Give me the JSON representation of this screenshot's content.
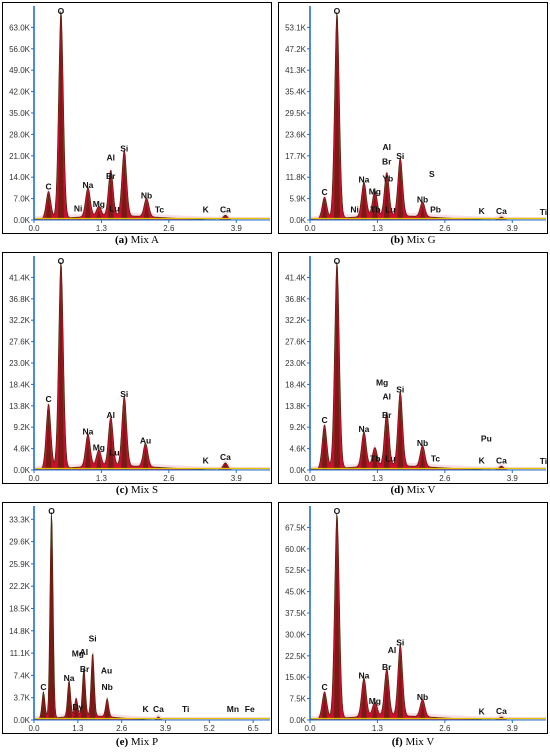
{
  "colors": {
    "frame": "#000000",
    "axis": "#1f6fd1",
    "fill": "#c8102e",
    "glow": "#f3b6c6",
    "dark": "#3a2200",
    "baseline": "#e6c200"
  },
  "panels": [
    {
      "id": "a",
      "caption_letter": "(a)",
      "caption_text": "Mix A",
      "chart_data": {
        "type": "area",
        "title": "",
        "xlabel": "",
        "ylabel": "",
        "xlim": [
          0,
          4.55
        ],
        "ylim": [
          0,
          70000
        ],
        "yticks": [
          "0.0K",
          "7.0K",
          "14.0K",
          "21.0K",
          "28.0K",
          "35.0K",
          "42.0K",
          "49.0K",
          "56.0K",
          "63.0K"
        ],
        "ytick_values": [
          0,
          7000,
          14000,
          21000,
          28000,
          35000,
          42000,
          49000,
          56000,
          63000
        ],
        "xticks": [
          "0.0",
          "1.3",
          "2.6",
          "3.9"
        ],
        "xtick_values": [
          0,
          1.3,
          2.6,
          3.9
        ],
        "peaks": [
          {
            "x": 0.28,
            "y": 9000
          },
          {
            "x": 0.52,
            "y": 68000
          },
          {
            "x": 1.04,
            "y": 9500
          },
          {
            "x": 1.25,
            "y": 3200
          },
          {
            "x": 1.48,
            "y": 15000
          },
          {
            "x": 1.74,
            "y": 21500
          },
          {
            "x": 2.17,
            "y": 6000
          },
          {
            "x": 3.69,
            "y": 1500
          }
        ],
        "labels": [
          {
            "text": "O",
            "x": 0.52,
            "y": 68000
          },
          {
            "text": "C",
            "x": 0.28,
            "y": 9000
          },
          {
            "text": "Na",
            "x": 1.04,
            "y": 9500
          },
          {
            "text": "Ni",
            "x": 0.85,
            "y": 1800
          },
          {
            "text": "Mg",
            "x": 1.25,
            "y": 3200
          },
          {
            "text": "Al",
            "x": 1.48,
            "y": 18500
          },
          {
            "text": "Br",
            "x": 1.48,
            "y": 12500
          },
          {
            "text": "Lu",
            "x": 1.55,
            "y": 1800
          },
          {
            "text": "Si",
            "x": 1.74,
            "y": 21500
          },
          {
            "text": "Nb",
            "x": 2.17,
            "y": 6000
          },
          {
            "text": "Tc",
            "x": 2.42,
            "y": 1500
          },
          {
            "text": "K",
            "x": 3.31,
            "y": 1500
          },
          {
            "text": "Ca",
            "x": 3.69,
            "y": 1500
          }
        ]
      }
    },
    {
      "id": "b",
      "caption_letter": "(b)",
      "caption_text": "Mix G",
      "chart_data": {
        "type": "area",
        "title": "",
        "xlabel": "",
        "ylabel": "",
        "xlim": [
          0,
          4.55
        ],
        "ylim": [
          0,
          59000
        ],
        "yticks": [
          "0.0K",
          "5.9K",
          "11.8K",
          "17.7K",
          "23.6K",
          "29.5K",
          "35.4K",
          "41.3K",
          "47.2K",
          "53.1K"
        ],
        "ytick_values": [
          0,
          5900,
          11800,
          17700,
          23600,
          29500,
          35400,
          41300,
          47200,
          53100
        ],
        "xticks": [
          "0.0",
          "1.3",
          "2.6",
          "3.9"
        ],
        "xtick_values": [
          0,
          1.3,
          2.6,
          3.9
        ],
        "peaks": [
          {
            "x": 0.28,
            "y": 6000
          },
          {
            "x": 0.52,
            "y": 57000
          },
          {
            "x": 1.04,
            "y": 9500
          },
          {
            "x": 1.25,
            "y": 7000
          },
          {
            "x": 1.48,
            "y": 12000
          },
          {
            "x": 1.74,
            "y": 16000
          },
          {
            "x": 2.17,
            "y": 4000
          },
          {
            "x": 3.69,
            "y": 800
          }
        ],
        "labels": [
          {
            "text": "O",
            "x": 0.52,
            "y": 57000
          },
          {
            "text": "C",
            "x": 0.28,
            "y": 6000
          },
          {
            "text": "Na",
            "x": 1.04,
            "y": 9500
          },
          {
            "text": "Ni",
            "x": 0.86,
            "y": 1200
          },
          {
            "text": "Mg",
            "x": 1.25,
            "y": 6200
          },
          {
            "text": "Tb",
            "x": 1.26,
            "y": 1200
          },
          {
            "text": "Al",
            "x": 1.48,
            "y": 18500
          },
          {
            "text": "Br",
            "x": 1.48,
            "y": 14500
          },
          {
            "text": "Yb",
            "x": 1.5,
            "y": 9800
          },
          {
            "text": "Lu",
            "x": 1.55,
            "y": 1200
          },
          {
            "text": "Si",
            "x": 1.74,
            "y": 16000
          },
          {
            "text": "S",
            "x": 2.35,
            "y": 11000
          },
          {
            "text": "Nb",
            "x": 2.17,
            "y": 4000
          },
          {
            "text": "Pb",
            "x": 2.42,
            "y": 1200
          },
          {
            "text": "K",
            "x": 3.31,
            "y": 800
          },
          {
            "text": "Ca",
            "x": 3.69,
            "y": 800
          },
          {
            "text": "Ti",
            "x": 4.5,
            "y": 600
          }
        ]
      }
    },
    {
      "id": "c",
      "caption_letter": "(c)",
      "caption_text": "Mix S",
      "chart_data": {
        "type": "area",
        "title": "",
        "xlabel": "",
        "ylabel": "",
        "xlim": [
          0,
          4.55
        ],
        "ylim": [
          0,
          46000
        ],
        "yticks": [
          "0.0K",
          "4.6K",
          "9.2K",
          "13.8K",
          "18.4K",
          "23.0K",
          "27.6K",
          "32.2K",
          "36.8K",
          "41.4K"
        ],
        "ytick_values": [
          0,
          4600,
          9200,
          13800,
          18400,
          23000,
          27600,
          32200,
          36800,
          41400
        ],
        "xticks": [
          "0.0",
          "1.3",
          "2.6",
          "3.9"
        ],
        "xtick_values": [
          0,
          1.3,
          2.6,
          3.9
        ],
        "peaks": [
          {
            "x": 0.28,
            "y": 14000
          },
          {
            "x": 0.52,
            "y": 44500
          },
          {
            "x": 1.04,
            "y": 7000
          },
          {
            "x": 1.25,
            "y": 3500
          },
          {
            "x": 1.48,
            "y": 10500
          },
          {
            "x": 1.74,
            "y": 15000
          },
          {
            "x": 2.15,
            "y": 5000
          },
          {
            "x": 3.69,
            "y": 1500
          }
        ],
        "labels": [
          {
            "text": "O",
            "x": 0.52,
            "y": 44500
          },
          {
            "text": "C",
            "x": 0.28,
            "y": 14000
          },
          {
            "text": "Na",
            "x": 1.04,
            "y": 7000
          },
          {
            "text": "Mg",
            "x": 1.25,
            "y": 3500
          },
          {
            "text": "Al",
            "x": 1.48,
            "y": 10500
          },
          {
            "text": "Lu",
            "x": 1.55,
            "y": 2500
          },
          {
            "text": "Si",
            "x": 1.74,
            "y": 15000
          },
          {
            "text": "Au",
            "x": 2.15,
            "y": 5000
          },
          {
            "text": "K",
            "x": 3.31,
            "y": 800
          },
          {
            "text": "Ca",
            "x": 3.69,
            "y": 1500
          }
        ]
      }
    },
    {
      "id": "d",
      "caption_letter": "(d)",
      "caption_text": "Mix V",
      "chart_data": {
        "type": "area",
        "title": "",
        "xlabel": "",
        "ylabel": "",
        "xlim": [
          0,
          4.55
        ],
        "ylim": [
          0,
          46000
        ],
        "yticks": [
          "0.0K",
          "4.6K",
          "9.2K",
          "13.8K",
          "18.4K",
          "23.0K",
          "27.6K",
          "32.2K",
          "36.8K",
          "41.4K"
        ],
        "ytick_values": [
          0,
          4600,
          9200,
          13800,
          18400,
          23000,
          27600,
          32200,
          36800,
          41400
        ],
        "xticks": [
          "0.0",
          "1.3",
          "2.6",
          "3.9"
        ],
        "xtick_values": [
          0,
          1.3,
          2.6,
          3.9
        ],
        "peaks": [
          {
            "x": 0.28,
            "y": 9500
          },
          {
            "x": 0.52,
            "y": 44500
          },
          {
            "x": 1.04,
            "y": 7500
          },
          {
            "x": 1.25,
            "y": 4000
          },
          {
            "x": 1.48,
            "y": 11500
          },
          {
            "x": 1.74,
            "y": 16000
          },
          {
            "x": 2.17,
            "y": 4500
          },
          {
            "x": 3.69,
            "y": 800
          }
        ],
        "labels": [
          {
            "text": "O",
            "x": 0.52,
            "y": 44500
          },
          {
            "text": "C",
            "x": 0.28,
            "y": 9500
          },
          {
            "text": "Na",
            "x": 1.04,
            "y": 7500
          },
          {
            "text": "Mg",
            "x": 1.39,
            "y": 17500
          },
          {
            "text": "Al",
            "x": 1.48,
            "y": 14500
          },
          {
            "text": "Br",
            "x": 1.48,
            "y": 10500
          },
          {
            "text": "Tb",
            "x": 1.26,
            "y": 1200
          },
          {
            "text": "Lu",
            "x": 1.55,
            "y": 1200
          },
          {
            "text": "Si",
            "x": 1.74,
            "y": 16000
          },
          {
            "text": "Nb",
            "x": 2.17,
            "y": 4500
          },
          {
            "text": "Tc",
            "x": 2.42,
            "y": 1200
          },
          {
            "text": "Pu",
            "x": 3.4,
            "y": 5500
          },
          {
            "text": "K",
            "x": 3.31,
            "y": 800
          },
          {
            "text": "Ca",
            "x": 3.69,
            "y": 800
          },
          {
            "text": "Ti",
            "x": 4.5,
            "y": 600
          }
        ]
      }
    },
    {
      "id": "e",
      "caption_letter": "(e)",
      "caption_text": "Mix P",
      "chart_data": {
        "type": "area",
        "title": "",
        "xlabel": "",
        "ylabel": "",
        "xlim": [
          0,
          7.0
        ],
        "ylim": [
          0,
          35500
        ],
        "yticks": [
          "0.0K",
          "3.7K",
          "7.4K",
          "11.1K",
          "14.8K",
          "18.5K",
          "22.2K",
          "25.9K",
          "29.6K",
          "33.3K"
        ],
        "ytick_values": [
          0,
          3700,
          7400,
          11100,
          14800,
          18500,
          22200,
          25900,
          29600,
          33300
        ],
        "xticks": [
          "0.0",
          "1.3",
          "2.6",
          "3.9",
          "5.2",
          "6.5"
        ],
        "xtick_values": [
          0,
          1.3,
          2.6,
          3.9,
          5.2,
          6.5
        ],
        "peaks": [
          {
            "x": 0.28,
            "y": 4500
          },
          {
            "x": 0.52,
            "y": 34500
          },
          {
            "x": 1.04,
            "y": 6000
          },
          {
            "x": 1.25,
            "y": 3000
          },
          {
            "x": 1.48,
            "y": 8000
          },
          {
            "x": 1.74,
            "y": 10500
          },
          {
            "x": 2.17,
            "y": 3000
          },
          {
            "x": 3.69,
            "y": 500
          }
        ],
        "labels": [
          {
            "text": "O",
            "x": 0.52,
            "y": 34500
          },
          {
            "text": "C",
            "x": 0.28,
            "y": 4500
          },
          {
            "text": "Na",
            "x": 1.04,
            "y": 6000
          },
          {
            "text": "Dy",
            "x": 1.3,
            "y": 1200
          },
          {
            "text": "Mg",
            "x": 1.3,
            "y": 10000
          },
          {
            "text": "Al",
            "x": 1.48,
            "y": 10300
          },
          {
            "text": "Br",
            "x": 1.5,
            "y": 7500
          },
          {
            "text": "Si",
            "x": 1.74,
            "y": 12500
          },
          {
            "text": "Au",
            "x": 2.15,
            "y": 7200
          },
          {
            "text": "Nb",
            "x": 2.17,
            "y": 4500
          },
          {
            "text": "K",
            "x": 3.31,
            "y": 800
          },
          {
            "text": "Ca",
            "x": 3.69,
            "y": 800
          },
          {
            "text": "Ti",
            "x": 4.5,
            "y": 800
          },
          {
            "text": "Mn",
            "x": 5.9,
            "y": 800
          },
          {
            "text": "Fe",
            "x": 6.4,
            "y": 800
          }
        ]
      }
    },
    {
      "id": "f",
      "caption_letter": "(f)",
      "caption_text": "Mix V",
      "chart_data": {
        "type": "area",
        "title": "",
        "xlabel": "",
        "ylabel": "",
        "xlim": [
          0,
          4.55
        ],
        "ylim": [
          0,
          75000
        ],
        "yticks": [
          "0.0K",
          "7.5K",
          "15.0K",
          "22.5K",
          "30.0K",
          "37.5K",
          "45.0K",
          "52.5K",
          "60.0K",
          "67.5K"
        ],
        "ytick_values": [
          0,
          7500,
          15000,
          22500,
          30000,
          37500,
          45000,
          52500,
          60000,
          67500
        ],
        "xticks": [
          "0.0",
          "1.3",
          "2.6",
          "3.9"
        ],
        "xtick_values": [
          0,
          1.3,
          2.6,
          3.9
        ],
        "peaks": [
          {
            "x": 0.28,
            "y": 9500
          },
          {
            "x": 0.52,
            "y": 72000
          },
          {
            "x": 1.04,
            "y": 13500
          },
          {
            "x": 1.25,
            "y": 5000
          },
          {
            "x": 1.48,
            "y": 16500
          },
          {
            "x": 1.74,
            "y": 25000
          },
          {
            "x": 2.17,
            "y": 6000
          },
          {
            "x": 3.69,
            "y": 1000
          }
        ],
        "labels": [
          {
            "text": "O",
            "x": 0.52,
            "y": 72000
          },
          {
            "text": "C",
            "x": 0.28,
            "y": 9500
          },
          {
            "text": "Na",
            "x": 1.04,
            "y": 13500
          },
          {
            "text": "Mg",
            "x": 1.25,
            "y": 4500
          },
          {
            "text": "Br",
            "x": 1.48,
            "y": 16500
          },
          {
            "text": "Al",
            "x": 1.58,
            "y": 22500
          },
          {
            "text": "Si",
            "x": 1.74,
            "y": 25000
          },
          {
            "text": "Nb",
            "x": 2.17,
            "y": 6000
          },
          {
            "text": "K",
            "x": 3.31,
            "y": 900
          },
          {
            "text": "Ca",
            "x": 3.69,
            "y": 1000
          }
        ]
      }
    }
  ]
}
